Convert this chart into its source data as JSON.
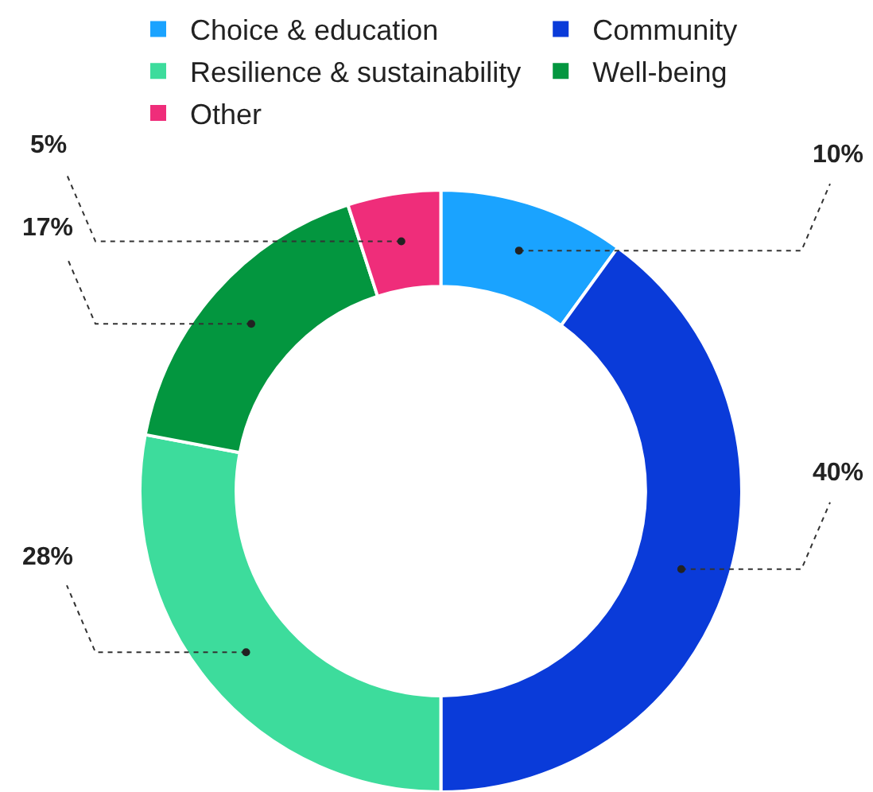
{
  "chart_data": {
    "type": "donut",
    "categories": [
      "Choice & education",
      "Community",
      "Resilience & sustainability",
      "Well-being",
      "Other"
    ],
    "values": [
      10,
      40,
      28,
      17,
      5
    ],
    "colors": [
      "#1aa3ff",
      "#0a3bd9",
      "#3ddc9c",
      "#03963f",
      "#ef2d7a"
    ],
    "value_labels": [
      "10%",
      "40%",
      "28%",
      "17%",
      "5%"
    ],
    "legend": "top"
  }
}
